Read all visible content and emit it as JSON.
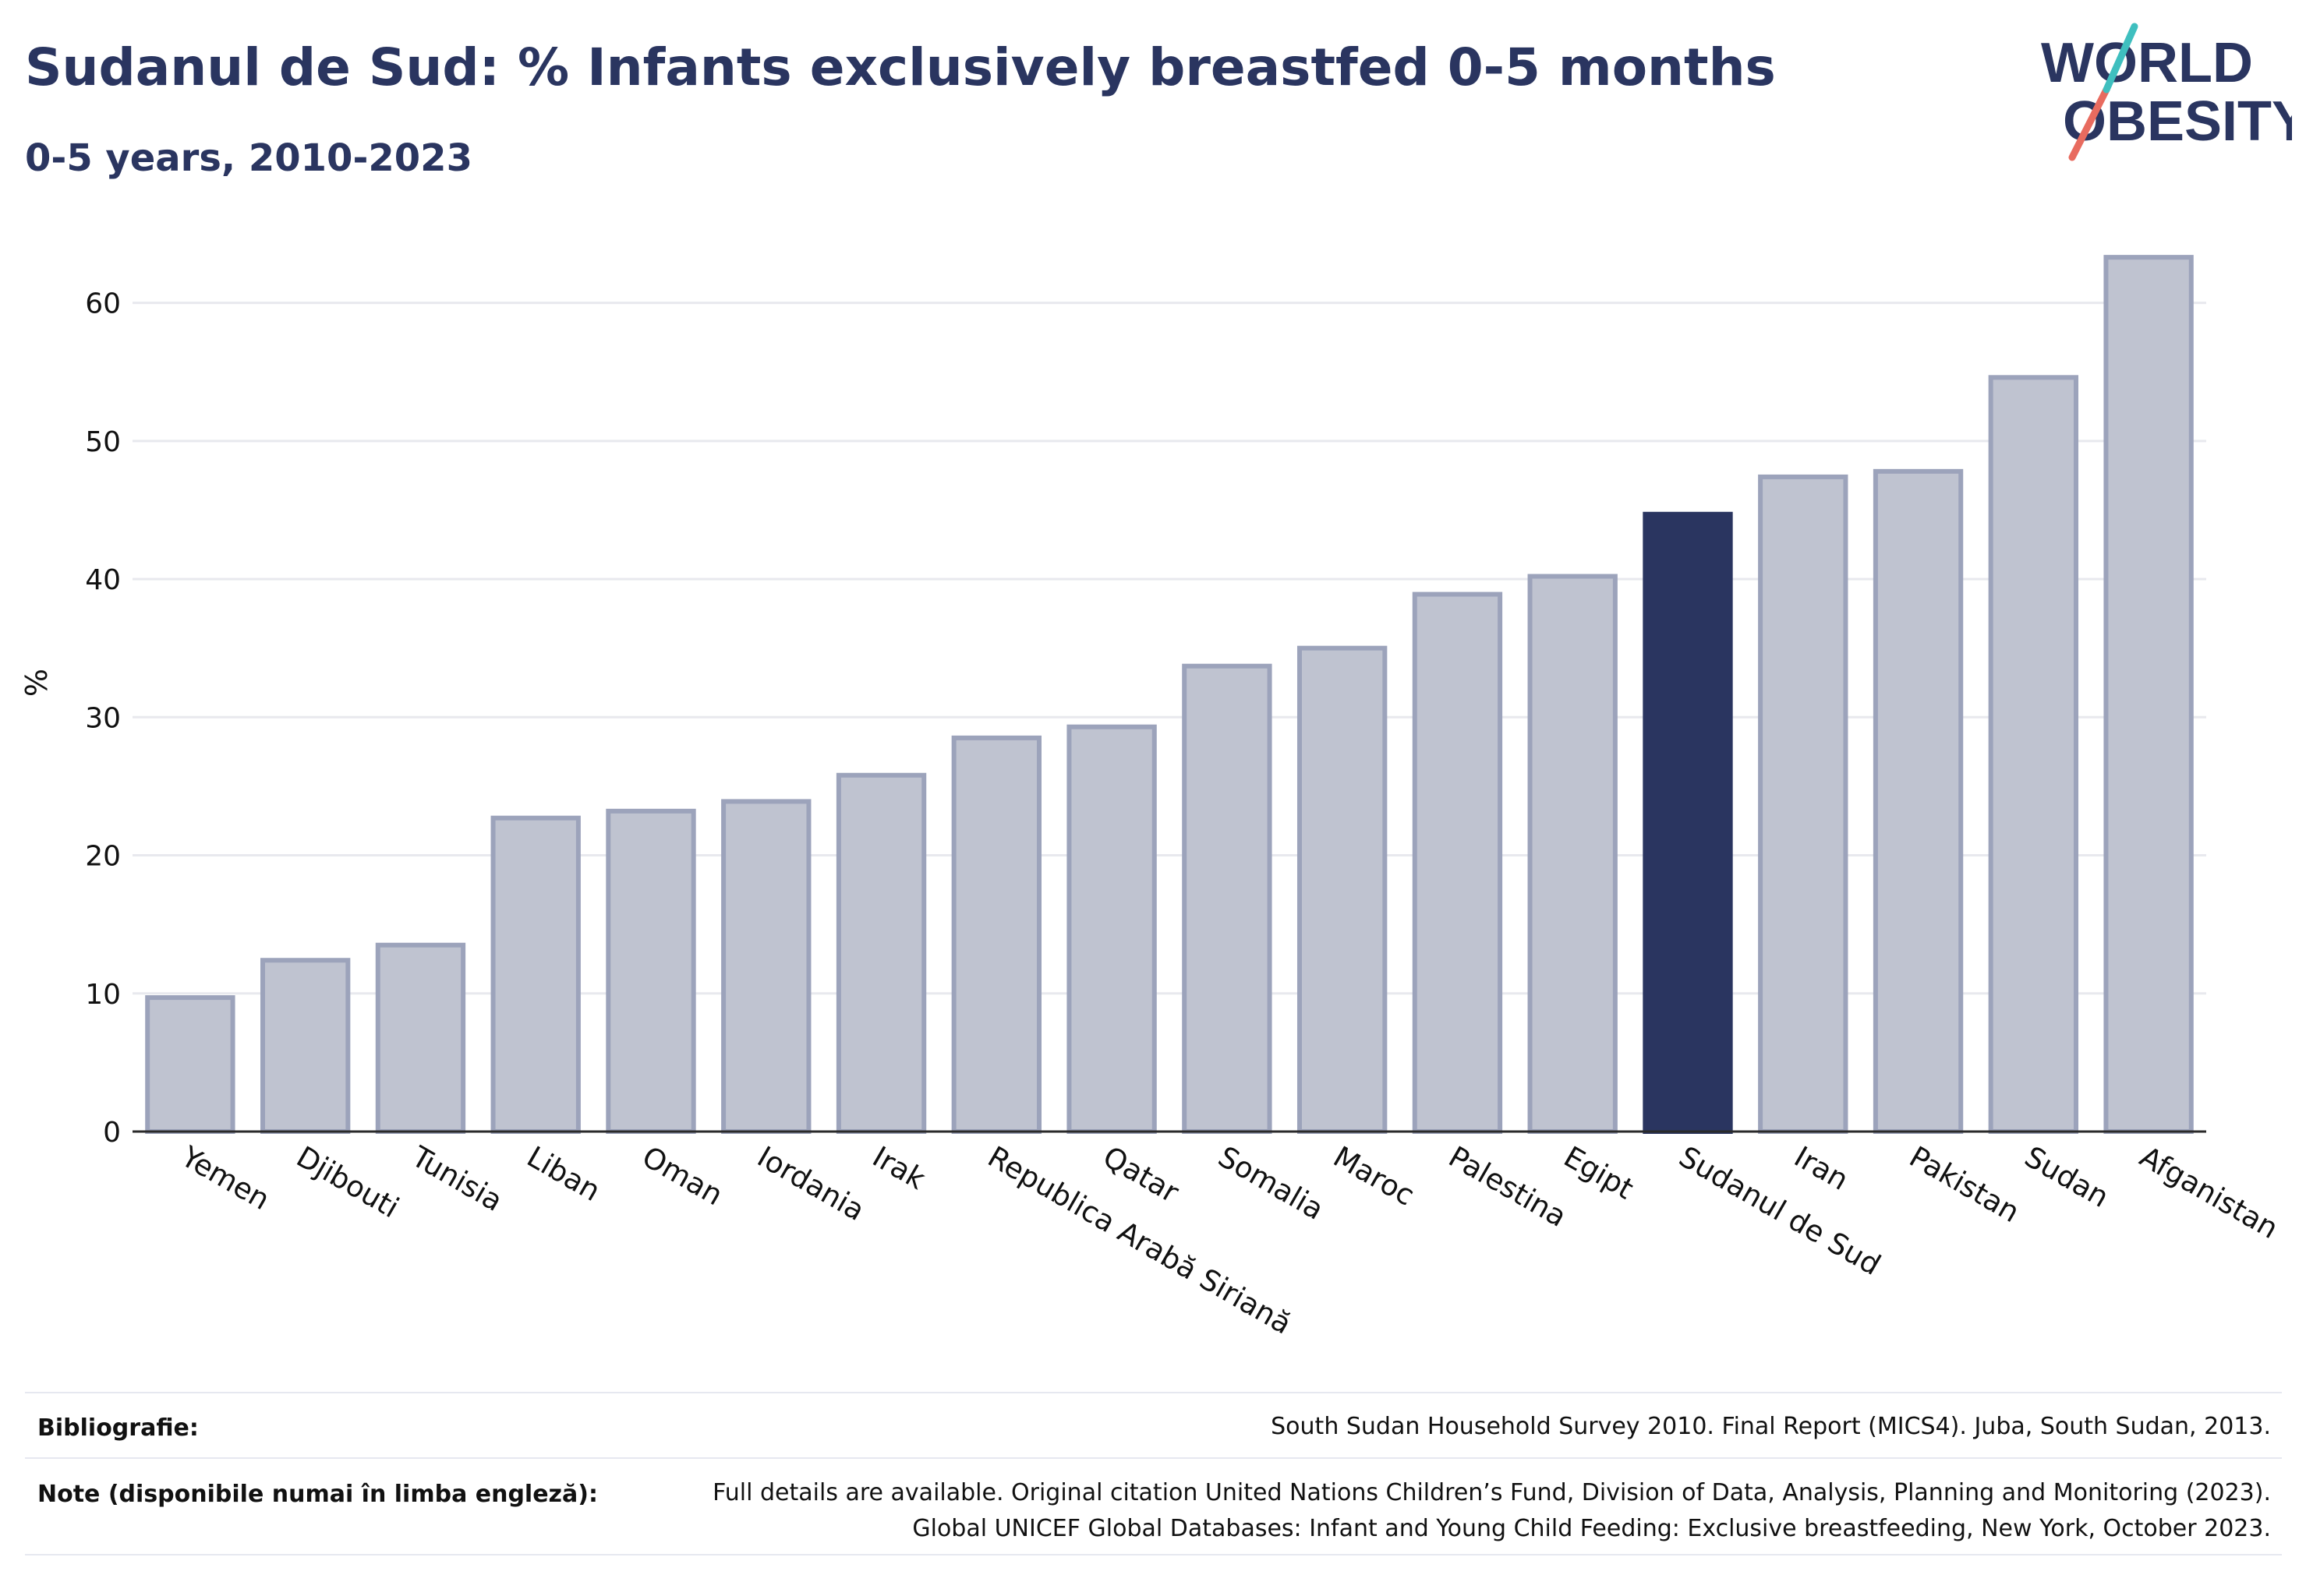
{
  "header": {
    "title": "Sudanul de Sud: % Infants exclusively breastfed 0-5 months",
    "subtitle": "0-5 years, 2010-2023"
  },
  "logo": {
    "line1": "WORLD",
    "line2": "OBESITY",
    "icon": "world-obesity-slash-logo"
  },
  "colors": {
    "bar": "#bfc3d0",
    "bar_stroke": "#9ca3bb",
    "highlight": "#2a3560",
    "grid": "#e8e9ee",
    "text": "#2a3560"
  },
  "chart_data": {
    "type": "bar",
    "ylabel": "%",
    "ylim": [
      0,
      65
    ],
    "yticks": [
      0,
      10,
      20,
      30,
      40,
      50,
      60
    ],
    "grid": true,
    "categories": [
      "Yemen",
      "Djibouti",
      "Tunisia",
      "Liban",
      "Oman",
      "Iordania",
      "Irak",
      "Republica Arabă Siriană",
      "Qatar",
      "Somalia",
      "Maroc",
      "Palestina",
      "Egipt",
      "Sudanul de Sud",
      "Iran",
      "Pakistan",
      "Sudan",
      "Afganistan"
    ],
    "values": [
      9.7,
      12.4,
      13.5,
      22.7,
      23.2,
      23.9,
      25.8,
      28.5,
      29.3,
      33.7,
      35.0,
      38.9,
      40.2,
      44.7,
      47.4,
      47.8,
      54.6,
      63.3
    ],
    "highlight": "Sudanul de Sud"
  },
  "footer": {
    "bibliography_label": "Bibliografie:",
    "bibliography_text": "South Sudan Household Survey 2010. Final Report (MICS4). Juba, South Sudan, 2013.",
    "notes_label": "Note (disponibile numai în limba engleză):",
    "notes_line1": "Full details are available. Original citation United Nations Children’s Fund, Division of Data, Analysis, Planning and Monitoring (2023).",
    "notes_line2": "Global UNICEF Global Databases: Infant and Young Child Feeding: Exclusive breastfeeding, New York, October 2023."
  }
}
